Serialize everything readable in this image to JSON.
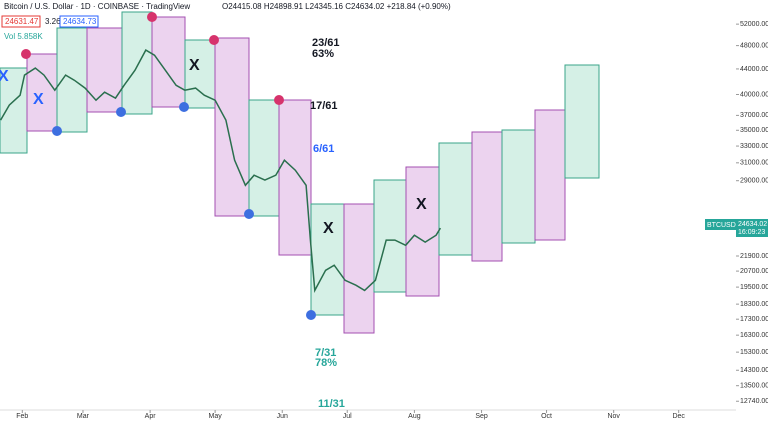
{
  "header": {
    "title": "Bitcoin / U.S. Dollar · 1D · COINBASE · TradingView",
    "ohlc": "O24415.08 H24898.91 L24345.16 C24634.02 +218.84 (+0.90%)",
    "bid": "24631.47",
    "spread": "3.26",
    "ask": "24634.73",
    "volume": "Vol 5.858K"
  },
  "price_label": {
    "symbol": "BTCUSD",
    "price": "24634.02",
    "timer": "16:09:23"
  },
  "annotations": {
    "a1": "23/61",
    "a2": "63%",
    "a3": "17/61",
    "a4": "6/61",
    "a5": "7/31",
    "a6": "78%",
    "a7": "11/31",
    "x": "X"
  },
  "chart_data": {
    "type": "line",
    "color": "#2a6f4e",
    "log_scale": true,
    "ylim": [
      12330,
      56900
    ],
    "yticks": [
      {
        "value": 52000,
        "label": "52000.00"
      },
      {
        "value": 48000,
        "label": "48000.00"
      },
      {
        "value": 44000,
        "label": "44000.00"
      },
      {
        "value": 40000,
        "label": "40000.00"
      },
      {
        "value": 37000,
        "label": "37000.00"
      },
      {
        "value": 35000,
        "label": "35000.00"
      },
      {
        "value": 33000,
        "label": "33000.00"
      },
      {
        "value": 31000,
        "label": "31000.00"
      },
      {
        "value": 29000,
        "label": "29000.00"
      },
      {
        "value": 21900,
        "label": "21900.00"
      },
      {
        "value": 20700,
        "label": "20700.00"
      },
      {
        "value": 19500,
        "label": "19500.00"
      },
      {
        "value": 18300,
        "label": "18300.00"
      },
      {
        "value": 17300,
        "label": "17300.00"
      },
      {
        "value": 16300,
        "label": "16300.00"
      },
      {
        "value": 15300,
        "label": "15300.00"
      },
      {
        "value": 14300,
        "label": "14300.00"
      },
      {
        "value": 13500,
        "label": "13500.00"
      },
      {
        "value": 12740,
        "label": "12740.00"
      }
    ],
    "xlim": [
      21.7,
      361
    ],
    "xticks": [
      {
        "value": 32,
        "label": "Feb"
      },
      {
        "value": 60,
        "label": "Mar"
      },
      {
        "value": 91,
        "label": "Apr"
      },
      {
        "value": 121,
        "label": "May"
      },
      {
        "value": 152,
        "label": "Jun"
      },
      {
        "value": 182,
        "label": "Jul"
      },
      {
        "value": 213,
        "label": "Aug"
      },
      {
        "value": 244,
        "label": "Sep"
      },
      {
        "value": 274,
        "label": "Oct"
      },
      {
        "value": 305,
        "label": "Nov"
      },
      {
        "value": 335,
        "label": "Dec"
      }
    ],
    "x": [
      22,
      26,
      31,
      33,
      38,
      42,
      47,
      52,
      56,
      61,
      66,
      70,
      75,
      79,
      84,
      89,
      93,
      98,
      103,
      107,
      112,
      116,
      121,
      126,
      130,
      135,
      139,
      144,
      149,
      153,
      158,
      163,
      165,
      167,
      172,
      176,
      181,
      186,
      190,
      195,
      200,
      204,
      209,
      213,
      218,
      223,
      225
    ],
    "values": [
      36350,
      38440,
      39900,
      43000,
      44130,
      43000,
      40650,
      43000,
      42190,
      40960,
      39150,
      40340,
      39460,
      41400,
      43790,
      47200,
      46310,
      43790,
      41400,
      40650,
      40960,
      39900,
      39150,
      36350,
      31310,
      28510,
      29600,
      29060,
      29600,
      31310,
      30160,
      28510,
      23240,
      19260,
      20760,
      21160,
      20000,
      19640,
      19260,
      20000,
      23240,
      23240,
      22790,
      23670,
      23060,
      23670,
      24300
    ]
  }
}
